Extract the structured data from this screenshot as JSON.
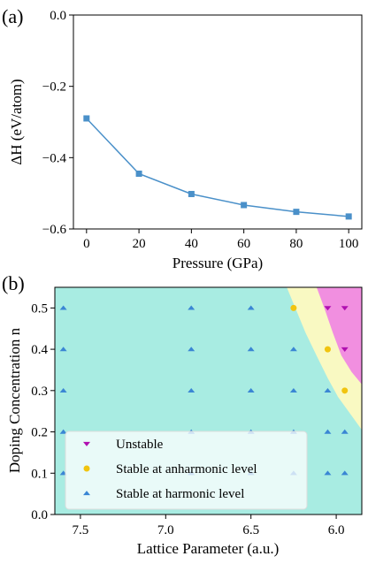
{
  "colors": {
    "line": "#4a90c9",
    "marker_a": "#4a90c9",
    "region_harmonic": "#a8ece2",
    "region_anharmonic": "#f9f9c2",
    "region_unstable": "#f18fe0",
    "marker_unstable": "#b00fb0",
    "marker_anharmonic": "#f1c40f",
    "marker_harmonic": "#3a86d4"
  },
  "chart_data": [
    {
      "type": "line",
      "panel_label": "(a)",
      "xlabel": "Pressure (GPa)",
      "ylabel": "ΔH (eV/atom)",
      "xlim": [
        -5,
        105
      ],
      "ylim": [
        -0.6,
        0.0
      ],
      "xticks": [
        0,
        20,
        40,
        60,
        80,
        100
      ],
      "yticks": [
        0.0,
        -0.2,
        -0.4,
        -0.6
      ],
      "xtick_labels": [
        "0",
        "20",
        "40",
        "60",
        "80",
        "100"
      ],
      "ytick_labels": [
        "0.0",
        "−0.2",
        "−0.4",
        "−0.6"
      ],
      "series": [
        {
          "x": [
            0,
            20,
            40,
            60,
            80,
            100
          ],
          "y": [
            -0.29,
            -0.445,
            -0.502,
            -0.533,
            -0.552,
            -0.565
          ],
          "marker": "square"
        }
      ],
      "grid": false
    },
    {
      "type": "scatter",
      "panel_label": "(b)",
      "xlabel": "Lattice Parameter (a.u.)",
      "ylabel": "Doping Concentration n",
      "xlim": [
        7.65,
        5.85
      ],
      "ylim": [
        0.0,
        0.55
      ],
      "x_axis_inverted": true,
      "xticks": [
        7.5,
        7.0,
        6.5,
        6.0
      ],
      "yticks": [
        0.0,
        0.1,
        0.2,
        0.3,
        0.4,
        0.5
      ],
      "xtick_labels": [
        "7.5",
        "7.0",
        "6.5",
        "6.0"
      ],
      "ytick_labels": [
        "0.0",
        "0.1",
        "0.2",
        "0.3",
        "0.4",
        "0.5"
      ],
      "regions": {
        "unstable_boundary": [
          [
            6.115,
            0.55
          ],
          [
            6.07,
            0.5
          ],
          [
            6.02,
            0.44
          ],
          [
            5.97,
            0.385
          ],
          [
            5.91,
            0.345
          ],
          [
            5.85,
            0.315
          ]
        ],
        "anharmonic_boundary": [
          [
            6.29,
            0.55
          ],
          [
            6.24,
            0.5
          ],
          [
            6.18,
            0.44
          ],
          [
            6.11,
            0.38
          ],
          [
            6.05,
            0.33
          ],
          [
            5.99,
            0.285
          ],
          [
            5.92,
            0.245
          ],
          [
            5.85,
            0.205
          ]
        ]
      },
      "series": [
        {
          "name": "Unstable",
          "marker": "down-triangle",
          "points": [
            [
              6.05,
              0.5
            ],
            [
              5.95,
              0.5
            ],
            [
              5.95,
              0.4
            ]
          ]
        },
        {
          "name": "Stable at anharmonic level",
          "marker": "circle",
          "points": [
            [
              6.25,
              0.5
            ],
            [
              6.05,
              0.4
            ],
            [
              5.95,
              0.3
            ]
          ]
        },
        {
          "name": "Stable at harmonic level",
          "marker": "up-triangle",
          "points": [
            [
              7.6,
              0.5
            ],
            [
              7.6,
              0.4
            ],
            [
              7.6,
              0.3
            ],
            [
              7.6,
              0.2
            ],
            [
              7.6,
              0.1
            ],
            [
              6.85,
              0.5
            ],
            [
              6.85,
              0.4
            ],
            [
              6.85,
              0.3
            ],
            [
              6.85,
              0.2
            ],
            [
              6.85,
              0.1
            ],
            [
              6.5,
              0.5
            ],
            [
              6.5,
              0.4
            ],
            [
              6.5,
              0.3
            ],
            [
              6.5,
              0.2
            ],
            [
              6.5,
              0.1
            ],
            [
              6.25,
              0.4
            ],
            [
              6.25,
              0.3
            ],
            [
              6.25,
              0.2
            ],
            [
              6.25,
              0.1
            ],
            [
              6.05,
              0.3
            ],
            [
              6.05,
              0.2
            ],
            [
              6.05,
              0.1
            ],
            [
              5.95,
              0.2
            ],
            [
              5.95,
              0.1
            ]
          ]
        }
      ],
      "legend": {
        "placement": "lower-left"
      },
      "grid": false
    }
  ]
}
